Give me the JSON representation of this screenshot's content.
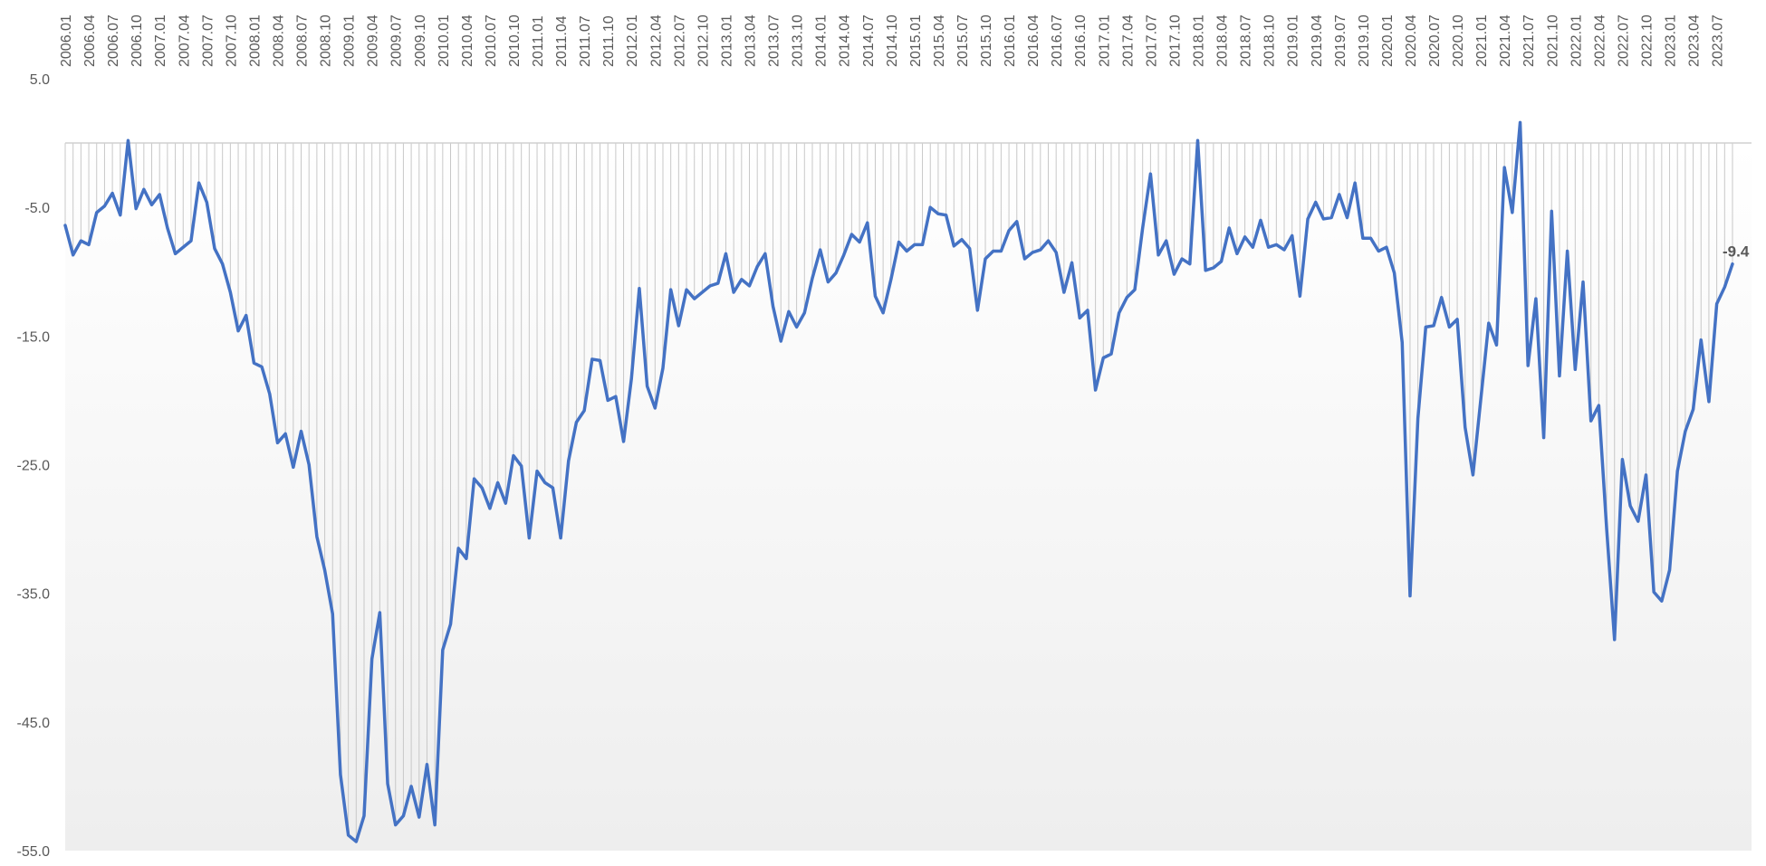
{
  "chart_data": {
    "type": "line",
    "title": "",
    "xlabel": "",
    "ylabel": "",
    "ylim": [
      -55,
      5
    ],
    "yticks": [
      5.0,
      -5.0,
      -15.0,
      -25.0,
      -35.0,
      -45.0,
      -55.0
    ],
    "ytick_labels": [
      "5.0",
      "-5.0",
      "-15.0",
      "-25.0",
      "-35.0",
      "-45.0",
      "-55.0"
    ],
    "grid": "vertical drop lines to zero",
    "legend": "none",
    "line_color": "#4472c4",
    "area_color": "#f0f0f0",
    "end_label": "-9.4",
    "start": "2006.01",
    "tick_every_months": 3,
    "x_tick_labels": [
      "2006.01",
      "2006.04",
      "2006.07",
      "2006.10",
      "2007.01",
      "2007.04",
      "2007.07",
      "2007.10",
      "2008.01",
      "2008.04",
      "2008.07",
      "2008.10",
      "2009.01",
      "2009.04",
      "2009.07",
      "2009.10",
      "2010.01",
      "2010.04",
      "2010.07",
      "2010.10",
      "2011.01",
      "2011.04",
      "2011.07",
      "2011.10",
      "2012.01",
      "2012.04",
      "2012.07",
      "2012.10",
      "2013.01",
      "2013.04",
      "2013.07",
      "2013.10",
      "2014.01",
      "2014.04",
      "2014.07",
      "2014.10",
      "2015.01",
      "2015.04",
      "2015.07",
      "2015.10",
      "2016.01",
      "2016.04",
      "2016.07",
      "2016.10",
      "2017.01",
      "2017.04",
      "2017.07",
      "2017.10",
      "2018.01",
      "2018.04",
      "2018.07",
      "2018.10",
      "2019.01",
      "2019.04",
      "2019.07",
      "2019.10",
      "2020.01",
      "2020.04",
      "2020.07",
      "2020.10",
      "2021.01",
      "2021.04",
      "2021.07",
      "2021.10",
      "2022.01",
      "2022.04",
      "2022.07",
      "2022.10",
      "2023.01",
      "2023.04",
      "2023.07"
    ],
    "values": [
      -6.4,
      -8.7,
      -7.6,
      -7.9,
      -5.4,
      -4.9,
      -3.9,
      -5.6,
      0.2,
      -5.1,
      -3.6,
      -4.8,
      -4.0,
      -6.6,
      -8.6,
      -8.1,
      -7.6,
      -3.1,
      -4.6,
      -8.2,
      -9.4,
      -11.6,
      -14.6,
      -13.4,
      -17.1,
      -17.4,
      -19.5,
      -23.3,
      -22.6,
      -25.2,
      -22.4,
      -25.0,
      -30.6,
      -33.2,
      -36.6,
      -49.1,
      -53.8,
      -54.3,
      -52.3,
      -40.1,
      -36.5,
      -49.8,
      -53.0,
      -52.3,
      -50.0,
      -52.4,
      -48.3,
      -53.0,
      -39.4,
      -37.4,
      -31.5,
      -32.3,
      -26.1,
      -26.8,
      -28.4,
      -26.4,
      -28.0,
      -24.3,
      -25.1,
      -30.7,
      -25.5,
      -26.4,
      -26.8,
      -30.7,
      -24.7,
      -21.7,
      -20.8,
      -16.8,
      -16.9,
      -20.0,
      -19.7,
      -23.2,
      -18.3,
      -11.3,
      -18.9,
      -20.6,
      -17.5,
      -11.4,
      -14.2,
      -11.4,
      -12.1,
      -11.6,
      -11.1,
      -10.9,
      -8.6,
      -11.6,
      -10.6,
      -11.1,
      -9.6,
      -8.6,
      -12.7,
      -15.4,
      -13.1,
      -14.3,
      -13.2,
      -10.5,
      -8.3,
      -10.8,
      -10.1,
      -8.7,
      -7.1,
      -7.7,
      -6.2,
      -11.9,
      -13.2,
      -10.6,
      -7.7,
      -8.4,
      -7.9,
      -7.9,
      -5.0,
      -5.5,
      -5.6,
      -8.0,
      -7.5,
      -8.2,
      -13.0,
      -9.0,
      -8.4,
      -8.4,
      -6.8,
      -6.1,
      -9.0,
      -8.5,
      -8.3,
      -7.6,
      -8.5,
      -11.6,
      -9.3,
      -13.6,
      -13.0,
      -19.2,
      -16.7,
      -16.4,
      -13.2,
      -12.0,
      -11.4,
      -6.6,
      -2.4,
      -8.7,
      -7.6,
      -10.2,
      -9.0,
      -9.4,
      0.2,
      -9.9,
      -9.7,
      -9.2,
      -6.6,
      -8.6,
      -7.3,
      -8.1,
      -6.0,
      -8.1,
      -7.9,
      -8.3,
      -7.2,
      -11.9,
      -5.9,
      -4.6,
      -5.9,
      -5.8,
      -4.0,
      -5.8,
      -3.1,
      -7.4,
      -7.4,
      -8.4,
      -8.1,
      -10.1,
      -15.5,
      -35.2,
      -21.4,
      -14.3,
      -14.2,
      -12.0,
      -14.3,
      -13.7,
      -22.1,
      -25.8,
      -19.9,
      -14.0,
      -15.7,
      -1.9,
      -5.4,
      1.6,
      -17.3,
      -12.1,
      -22.9,
      -5.3,
      -18.1,
      -8.4,
      -17.6,
      -10.8,
      -21.6,
      -20.4,
      -30.0,
      -38.6,
      -24.6,
      -28.2,
      -29.4,
      -25.8,
      -34.9,
      -35.6,
      -33.2,
      -25.5,
      -22.4,
      -20.7,
      -15.3,
      -20.1,
      -12.5,
      -11.2,
      -9.4
    ]
  }
}
